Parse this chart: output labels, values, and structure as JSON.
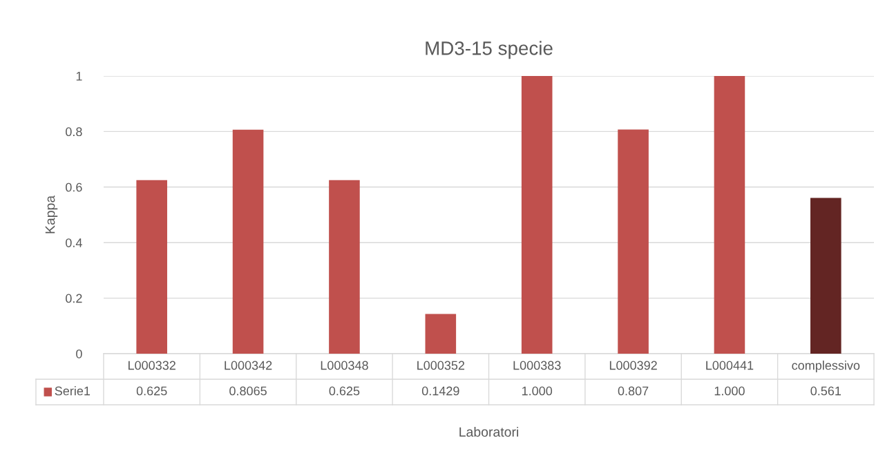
{
  "chart_data": {
    "type": "bar",
    "title": "MD3-15 specie",
    "xlabel": "Laboratori",
    "ylabel": "Kappa",
    "categories": [
      "L000332",
      "L000342",
      "L000348",
      "L000352",
      "L000383",
      "L000392",
      "L000441",
      "complessivo"
    ],
    "series": [
      {
        "name": "Serie1",
        "color": "#c0504d",
        "colors": [
          "#c0504d",
          "#c0504d",
          "#c0504d",
          "#c0504d",
          "#c0504d",
          "#c0504d",
          "#c0504d",
          "#632523"
        ],
        "values": [
          0.625,
          0.8065,
          0.625,
          0.1429,
          1.0,
          0.807,
          1.0,
          0.561
        ],
        "value_labels": [
          "0.625",
          "0.8065",
          "0.625",
          "0.1429",
          "1.000",
          "0.807",
          "1.000",
          "0.561"
        ]
      }
    ],
    "ylim": [
      0,
      1
    ],
    "yticks": [
      0,
      0.2,
      0.4,
      0.6,
      0.8,
      1
    ],
    "grid": "y"
  }
}
